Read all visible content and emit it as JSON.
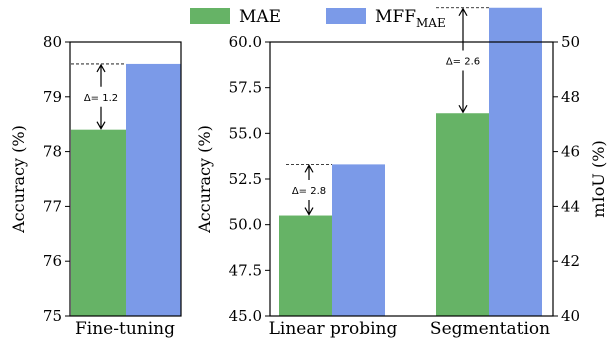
{
  "legend": [
    {
      "name": "MAE",
      "color": "#66b366"
    },
    {
      "name": "MFF",
      "sub": "MAE",
      "color": "#7b9ae8"
    }
  ],
  "chart_data": [
    {
      "type": "bar",
      "categories": [
        "Fine-tuning"
      ],
      "ylabel": "Accuracy (%)",
      "ylim": [
        75,
        80
      ],
      "yticks": [
        "75",
        "76",
        "77",
        "78",
        "79",
        "80"
      ],
      "series": [
        {
          "name": "MAE",
          "values": [
            78.4
          ]
        },
        {
          "name": "MFF_MAE",
          "values": [
            79.6
          ]
        }
      ],
      "annotations": [
        "Δ= 1.2"
      ]
    },
    {
      "type": "bar",
      "categories": [
        "Linear probing",
        "Segmentation"
      ],
      "ylabel": "Accuracy (%)",
      "ylabel_right": "mIoU (%)",
      "ylim": [
        45.0,
        60.0
      ],
      "ylim_right": [
        40,
        50
      ],
      "yticks": [
        "45.0",
        "47.5",
        "50.0",
        "52.5",
        "55.0",
        "57.5",
        "60.0"
      ],
      "yticks_right": [
        "40",
        "42",
        "44",
        "46",
        "48",
        "50"
      ],
      "series": [
        {
          "name": "MAE",
          "values": [
            50.5,
            47.4
          ]
        },
        {
          "name": "MFF_MAE",
          "values": [
            53.3,
            51.25
          ]
        }
      ],
      "annotations": [
        "Δ= 2.8",
        "Δ= 2.6"
      ]
    }
  ]
}
